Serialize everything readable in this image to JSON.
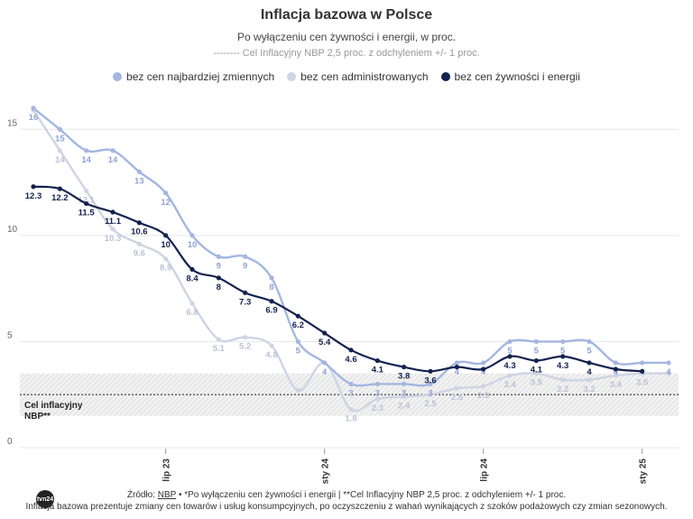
{
  "header": {
    "title": "Inflacja bazowa w Polsce",
    "subtitle": "Po wyłączeniu cen żywności i energii, w proc.",
    "subtitle2": "-------- Cel Inflacyjny NBP 2,5 proc. z odchyleniem +/- 1 proc."
  },
  "footer": {
    "source_prefix": "Źródło: ",
    "source_link": "NBP",
    "source_rest": " • *Po wyłączeniu cen żywności i energii | **Cel Inflacyjny NBP 2,5 proc. z odchyleniem +/- 1 proc.",
    "note": "Inflacja bazowa prezentuje zmiany cen towarów i usług konsumpcyjnych, po oczyszczeniu z wahań wynikających z szoków podażowych czy zmian sezonowych.",
    "logo_text": "tvn24"
  },
  "chart_data": {
    "type": "line",
    "x": [
      "2023-02",
      "2023-03",
      "2023-04",
      "2023-05",
      "2023-06",
      "2023-07",
      "2023-08",
      "2023-09",
      "2023-10",
      "2023-11",
      "2023-12",
      "2024-01",
      "2024-02",
      "2024-03",
      "2024-04",
      "2024-05",
      "2024-06",
      "2024-07",
      "2024-08",
      "2024-09",
      "2024-10",
      "2024-11",
      "2024-12",
      "2025-01",
      "2025-02"
    ],
    "x_tick_labels": [
      {
        "x": "2023-07",
        "label": "lip 23"
      },
      {
        "x": "2024-01",
        "label": "sty 24"
      },
      {
        "x": "2024-07",
        "label": "lip 24"
      },
      {
        "x": "2025-01",
        "label": "sty 25"
      }
    ],
    "ylim": [
      0,
      16.5
    ],
    "y_ticks": [
      0,
      5,
      10,
      15
    ],
    "grid": true,
    "legend_position": "top-center",
    "target_band": {
      "center": 2.5,
      "low": 1.5,
      "high": 3.5,
      "label_line1": "Cel inflacyjny",
      "label_line2": "NBP**"
    },
    "series": [
      {
        "name": "bez cen najbardziej zmiennych",
        "color": "#a3b6e0",
        "label_color": "#8fa3d6",
        "values": [
          16,
          15,
          14,
          14,
          13,
          12,
          10,
          9,
          9,
          8,
          5,
          4,
          3,
          3,
          3,
          3,
          4,
          4,
          5,
          5,
          5,
          5,
          4,
          4,
          4
        ],
        "labels": [
          "16",
          "15",
          "14",
          "14",
          "13",
          "12",
          "10",
          "9",
          "9",
          "8",
          "5",
          "4",
          "3",
          "3",
          "3",
          "3",
          "4",
          "4",
          "5",
          "5",
          "5",
          "5",
          "4",
          "4",
          "4"
        ]
      },
      {
        "name": "bez cen administrowanych",
        "color": "#cdd4e4",
        "label_color": "#b9c2d6",
        "values": [
          15.9,
          14,
          12.1,
          10.3,
          9.6,
          8.9,
          6.8,
          5.1,
          5.2,
          4.8,
          2.7,
          4,
          1.8,
          2.3,
          2.4,
          2.5,
          2.8,
          2.9,
          3.4,
          3.5,
          3.2,
          3.2,
          3.4,
          3.5,
          3.5
        ],
        "labels": [
          "",
          "14",
          "12.1",
          "10.3",
          "9.6",
          "8.9",
          "6.8",
          "5.1",
          "5.2",
          "4.8",
          "",
          "",
          "1.8",
          "2.3",
          "2.4",
          "2.5",
          "2.8",
          "2.9",
          "3.4",
          "3.5",
          "3.2",
          "3.2",
          "3.4",
          "3.5",
          ""
        ]
      },
      {
        "name": "bez cen żywności i energii",
        "color": "#13224f",
        "label_color": "#13224f",
        "values": [
          12.3,
          12.2,
          11.5,
          11.1,
          10.6,
          10,
          8.4,
          8,
          7.3,
          6.9,
          6.2,
          5.4,
          4.6,
          4.1,
          3.8,
          3.6,
          3.8,
          3.7,
          4.3,
          4.1,
          4.3,
          4,
          3.7,
          3.6,
          null
        ],
        "labels": [
          "12.3",
          "12.2",
          "11.5",
          "11.1",
          "10.6",
          "10",
          "8.4",
          "8",
          "7.3",
          "6.9",
          "6.2",
          "5.4",
          "4.6",
          "4.1",
          "3.8",
          "3.6",
          "",
          "",
          "4.3",
          "4.1",
          "4.3",
          "4",
          "",
          "",
          ""
        ]
      }
    ]
  }
}
